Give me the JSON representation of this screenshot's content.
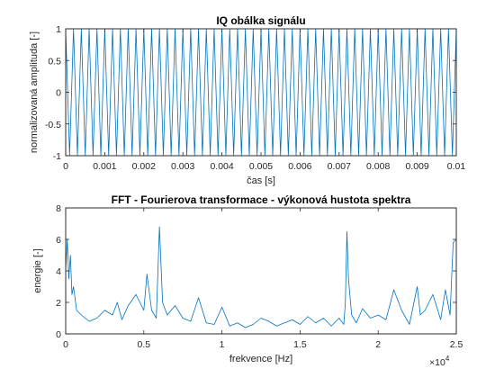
{
  "chart_data": [
    {
      "type": "line",
      "title": "IQ obálka signálu",
      "xlabel": "čas [s]",
      "ylabel": "normalizovaná amplituda [-]",
      "xlim": [
        0,
        0.01
      ],
      "ylim": [
        -1,
        1
      ],
      "x_ticks": [
        "0",
        "0.001",
        "0.002",
        "0.003",
        "0.004",
        "0.005",
        "0.006",
        "0.007",
        "0.008",
        "0.009",
        "0.01"
      ],
      "y_ticks": [
        "-1",
        "-0.5",
        "0",
        "0.5",
        "1"
      ],
      "grid": false,
      "color": "#0072BD",
      "series": [
        {
          "description_values": "dense oscillating signal switching between -1 and 1",
          "x": [
            0,
            0.0001,
            0.0002,
            0.0003,
            0.0004,
            0.0005,
            0.0006,
            0.0007,
            0.0008,
            0.0009,
            0.001,
            0.0011,
            0.0012,
            0.0013,
            0.0014,
            0.0015,
            0.0016,
            0.0017,
            0.0018,
            0.0019,
            0.002,
            0.0021,
            0.0022,
            0.0023,
            0.0024,
            0.0025,
            0.0026,
            0.0027,
            0.0028,
            0.0029,
            0.003,
            0.0031,
            0.0032,
            0.0033,
            0.0034,
            0.0035,
            0.0036,
            0.0037,
            0.0038,
            0.0039,
            0.004,
            0.0041,
            0.0042,
            0.0043,
            0.0044,
            0.0045,
            0.0046,
            0.0047,
            0.0048,
            0.0049,
            0.005,
            0.0051,
            0.0052,
            0.0053,
            0.0054,
            0.0055,
            0.0056,
            0.0057,
            0.0058,
            0.0059,
            0.006,
            0.0061,
            0.0062,
            0.0063,
            0.0064,
            0.0065,
            0.0066,
            0.0067,
            0.0068,
            0.0069,
            0.007,
            0.0071,
            0.0072,
            0.0073,
            0.0074,
            0.0075,
            0.0076,
            0.0077,
            0.0078,
            0.0079,
            0.008,
            0.0081,
            0.0082,
            0.0083,
            0.0084,
            0.0085,
            0.0086,
            0.0087,
            0.0088,
            0.0089,
            0.009,
            0.0091,
            0.0092,
            0.0093,
            0.0094,
            0.0095,
            0.0096,
            0.0097,
            0.0098,
            0.0099,
            0.01
          ],
          "values": [
            1,
            -1,
            1,
            -1,
            1,
            -1,
            1,
            -1,
            1,
            -1,
            1,
            -1,
            1,
            -1,
            1,
            -1,
            1,
            -1,
            1,
            -1,
            1,
            -1,
            1,
            -1,
            1,
            -1,
            1,
            -1,
            1,
            -1,
            1,
            -1,
            1,
            -1,
            1,
            -1,
            1,
            -1,
            1,
            -1,
            1,
            -1,
            1,
            -1,
            1,
            -1,
            1,
            -1,
            1,
            -1,
            1,
            -1,
            1,
            -1,
            1,
            -1,
            1,
            -1,
            1,
            -1,
            1,
            -1,
            1,
            -1,
            1,
            -1,
            1,
            -1,
            1,
            -1,
            1,
            -1,
            1,
            -1,
            1,
            -1,
            1,
            -1,
            1,
            -1,
            1,
            -1,
            1,
            -1,
            1,
            -1,
            1,
            -1,
            1,
            -1,
            1,
            -1,
            1,
            -1,
            1,
            -1,
            1,
            -1,
            1,
            -1,
            1
          ]
        }
      ]
    },
    {
      "type": "line",
      "title": "FFT - Fourierova transformace - výkonová hustota spektra",
      "xlabel": "frekvence [Hz]",
      "ylabel": "energie [-]",
      "xlim": [
        0,
        25000
      ],
      "ylim": [
        0,
        8
      ],
      "x_ticks": [
        "0",
        "0.5",
        "1",
        "1.5",
        "2",
        "2.5"
      ],
      "x_exponent_label": "×10",
      "x_exponent": "4",
      "y_ticks": [
        "0",
        "2",
        "4",
        "6",
        "8"
      ],
      "grid": false,
      "color": "#0072BD",
      "series": [
        {
          "x": [
            0,
            100,
            200,
            300,
            400,
            500,
            700,
            1000,
            1500,
            2000,
            2500,
            3000,
            3300,
            3600,
            4000,
            4500,
            5000,
            5200,
            5500,
            5800,
            6000,
            6200,
            6500,
            7000,
            7500,
            8000,
            8500,
            9000,
            9500,
            10000,
            10500,
            11000,
            11500,
            12000,
            12500,
            13000,
            13500,
            14000,
            14500,
            15000,
            15500,
            16000,
            16500,
            17000,
            17500,
            17800,
            17900,
            18000,
            18100,
            18300,
            18600,
            19000,
            19500,
            20000,
            20500,
            21000,
            21500,
            22000,
            22500,
            22700,
            23000,
            23500,
            24000,
            24300,
            24600,
            24800,
            25000
          ],
          "values": [
            4.0,
            6.0,
            3.5,
            5.0,
            2.5,
            3.0,
            1.5,
            1.2,
            0.8,
            1.0,
            1.5,
            1.2,
            2.0,
            0.9,
            1.8,
            2.5,
            1.5,
            3.8,
            1.5,
            1.0,
            6.8,
            2.0,
            1.2,
            1.8,
            1.0,
            0.8,
            2.3,
            0.7,
            0.6,
            1.7,
            0.5,
            0.7,
            0.4,
            0.6,
            1.0,
            0.8,
            0.5,
            0.7,
            0.9,
            0.6,
            1.1,
            0.7,
            1.0,
            0.5,
            1.0,
            0.6,
            2.0,
            6.5,
            3.5,
            1.2,
            0.7,
            1.6,
            1.0,
            1.2,
            0.9,
            2.8,
            1.5,
            0.6,
            3.0,
            1.2,
            1.5,
            2.5,
            0.9,
            2.8,
            1.2,
            5.8,
            6.0
          ]
        }
      ]
    }
  ]
}
